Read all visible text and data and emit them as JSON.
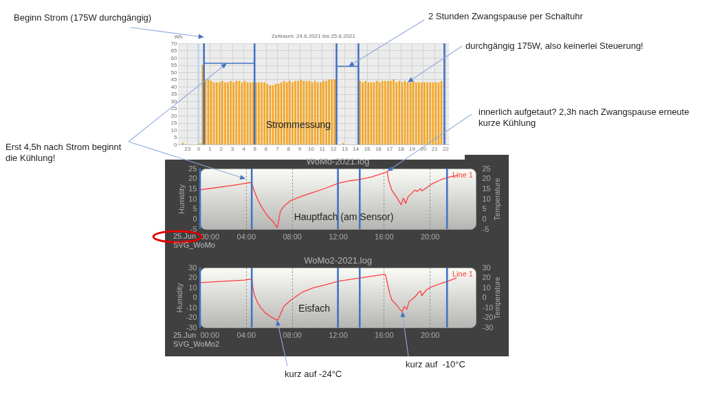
{
  "chart_data": [
    {
      "type": "bar",
      "title": "Zeitraum: 24.6.2021 bis 25.6.2021",
      "ylabel": "Wh",
      "x": [
        "2021-06-24T22:38",
        "2021-06-25T00:08",
        "2021-06-25T00:23",
        "2021-06-25T00:38",
        "2021-06-25T00:53",
        "2021-06-25T01:08",
        "2021-06-25T01:23",
        "2021-06-25T01:38",
        "2021-06-25T01:53",
        "2021-06-25T02:08",
        "2021-06-25T02:23",
        "2021-06-25T02:38",
        "2021-06-25T02:53",
        "2021-06-25T03:08",
        "2021-06-25T03:23",
        "2021-06-25T03:38",
        "2021-06-25T03:53",
        "2021-06-25T04:08",
        "2021-06-25T04:23",
        "2021-06-25T04:38",
        "2021-06-25T04:53",
        "2021-06-25T05:08",
        "2021-06-25T05:23",
        "2021-06-25T05:38",
        "2021-06-25T05:53",
        "2021-06-25T06:08",
        "2021-06-25T06:23",
        "2021-06-25T06:38",
        "2021-06-25T06:53",
        "2021-06-25T07:08",
        "2021-06-25T07:23",
        "2021-06-25T07:38",
        "2021-06-25T07:53",
        "2021-06-25T08:08",
        "2021-06-25T08:23",
        "2021-06-25T08:38",
        "2021-06-25T08:53",
        "2021-06-25T09:08",
        "2021-06-25T09:23",
        "2021-06-25T09:38",
        "2021-06-25T09:53",
        "2021-06-25T10:08",
        "2021-06-25T10:23",
        "2021-06-25T10:38",
        "2021-06-25T10:53",
        "2021-06-25T11:08",
        "2021-06-25T11:23",
        "2021-06-25T11:38",
        "2021-06-25T11:53",
        "2021-06-25T12:08",
        "2021-06-25T12:53",
        "2021-06-25T14:23",
        "2021-06-25T14:38",
        "2021-06-25T14:53",
        "2021-06-25T15:08",
        "2021-06-25T15:23",
        "2021-06-25T15:38",
        "2021-06-25T15:53",
        "2021-06-25T16:08",
        "2021-06-25T16:23",
        "2021-06-25T16:38",
        "2021-06-25T16:53",
        "2021-06-25T17:08",
        "2021-06-25T17:23",
        "2021-06-25T17:38",
        "2021-06-25T17:53",
        "2021-06-25T18:08",
        "2021-06-25T18:23",
        "2021-06-25T18:38",
        "2021-06-25T18:53",
        "2021-06-25T19:08",
        "2021-06-25T19:23",
        "2021-06-25T19:38",
        "2021-06-25T19:53",
        "2021-06-25T20:08",
        "2021-06-25T20:23",
        "2021-06-25T20:38",
        "2021-06-25T20:53",
        "2021-06-25T21:08",
        "2021-06-25T21:23",
        "2021-06-25T21:38"
      ],
      "series": [
        {
          "color": "#f6a623",
          "values": [
            1,
            1,
            55,
            45,
            45,
            44,
            43,
            43,
            43,
            44,
            43,
            43,
            44,
            43,
            44,
            44,
            43,
            44,
            43,
            43,
            43,
            43,
            43,
            43,
            43,
            42,
            41,
            41,
            42,
            42,
            43,
            44,
            43,
            44,
            43,
            44,
            44,
            45,
            44,
            44,
            44,
            43,
            44,
            43,
            43,
            44,
            44,
            45,
            45,
            45,
            1,
            44,
            43,
            44,
            43,
            43,
            43,
            44,
            43,
            44,
            44,
            44,
            44,
            45,
            43,
            44,
            43,
            44,
            43,
            43,
            44,
            43,
            43,
            43,
            43,
            43,
            43,
            43,
            43,
            43,
            44
          ]
        }
      ],
      "xlim": [
        "2021-06-24T22:30",
        "2021-06-25T22:00"
      ],
      "xticks": [
        {
          "value": "2021-06-24T23:00",
          "label": "23"
        },
        {
          "value": "2021-06-25T00:00",
          "label": "0"
        },
        {
          "value": "2021-06-25T01:00",
          "label": "1"
        },
        {
          "value": "2021-06-25T02:00",
          "label": "2"
        },
        {
          "value": "2021-06-25T03:00",
          "label": "3"
        },
        {
          "value": "2021-06-25T04:00",
          "label": "4"
        },
        {
          "value": "2021-06-25T05:00",
          "label": "5"
        },
        {
          "value": "2021-06-25T06:00",
          "label": "6"
        },
        {
          "value": "2021-06-25T07:00",
          "label": "7"
        },
        {
          "value": "2021-06-25T08:00",
          "label": "8"
        },
        {
          "value": "2021-06-25T09:00",
          "label": "9"
        },
        {
          "value": "2021-06-25T10:00",
          "label": "10"
        },
        {
          "value": "2021-06-25T11:00",
          "label": "11"
        },
        {
          "value": "2021-06-25T12:00",
          "label": "12"
        },
        {
          "value": "2021-06-25T13:00",
          "label": "13"
        },
        {
          "value": "2021-06-25T14:00",
          "label": "14"
        },
        {
          "value": "2021-06-25T15:00",
          "label": "15"
        },
        {
          "value": "2021-06-25T16:00",
          "label": "16"
        },
        {
          "value": "2021-06-25T17:00",
          "label": "17"
        },
        {
          "value": "2021-06-25T18:00",
          "label": "18"
        },
        {
          "value": "2021-06-25T19:00",
          "label": "19"
        },
        {
          "value": "2021-06-25T20:00",
          "label": "20"
        },
        {
          "value": "2021-06-25T21:00",
          "label": "21"
        },
        {
          "value": "2021-06-25T22:00",
          "label": "22"
        }
      ],
      "ylim": [
        0,
        70
      ],
      "yticks": [
        0,
        5,
        10,
        15,
        20,
        25,
        30,
        35,
        40,
        45,
        50,
        55,
        60,
        65,
        70
      ],
      "grid": true,
      "ref_lines": [
        {
          "axis": "x",
          "value": "2021-06-25T00:00",
          "color": "#bdd7ee"
        },
        {
          "axis": "x",
          "value": "2021-06-25T00:30",
          "color": "#4472c4"
        },
        {
          "axis": "x",
          "value": "2021-06-25T05:00",
          "color": "#4472c4"
        },
        {
          "axis": "x",
          "value": "2021-06-25T12:18",
          "color": "#4472c4"
        },
        {
          "axis": "x",
          "value": "2021-06-25T14:15",
          "color": "#4472c4"
        },
        {
          "axis": "x",
          "value": "2021-06-25T21:54",
          "color": "#4472c4"
        }
      ],
      "annotations": [
        "Strommessung",
        "Beginn Strom (175W durchgängig)",
        "2 Stunden Zwangspause per Schaltuhr",
        {
          "text": "durchgängig 175W, also keinerlei Steuerung!",
          "x": "2021-06-25T18:38",
          "y": 43
        }
      ]
    },
    {
      "type": "line",
      "title": "WoMo-2021.log",
      "ylabel": "Humidity",
      "y2label": "Temperature",
      "series": [
        {
          "name": "Line 1",
          "color": "#ff3c3c",
          "x": [
            0,
            1,
            2,
            2.9,
            3.9,
            4.4,
            4.5,
            4.8,
            5.1,
            5.5,
            6,
            6.4,
            6.7,
            6.8,
            7,
            7.3,
            7.9,
            8.9,
            9.9,
            10.9,
            12,
            12.9,
            13.9,
            14.9,
            16.1,
            16.3,
            16.4,
            16.7,
            17.1,
            17.5,
            17.7,
            17.9,
            18.1,
            18.4,
            18.7,
            18.9,
            19.2,
            19.3,
            19.7,
            20.1,
            20.9,
            21.7,
            22.4
          ],
          "values": [
            14.5,
            15.2,
            16,
            16.7,
            17.6,
            18.1,
            17.6,
            12.6,
            8.6,
            4.6,
            0.7,
            -1.6,
            -4.2,
            -2.2,
            4,
            6.3,
            9.2,
            11.4,
            13.3,
            15.2,
            17.6,
            18.8,
            19.6,
            20.8,
            23,
            23.6,
            19.3,
            14.2,
            10.9,
            7.1,
            10.3,
            7.7,
            10.9,
            12.6,
            14.3,
            13.7,
            15,
            13.9,
            15.4,
            17.1,
            19.3,
            20.8,
            21.6
          ]
        }
      ],
      "xlim": [
        0,
        24
      ],
      "xticks": [
        {
          "value": 0,
          "label": "00:00"
        },
        {
          "value": 4,
          "label": "04:00"
        },
        {
          "value": 8,
          "label": "08:00"
        },
        {
          "value": 12,
          "label": "12:00"
        },
        {
          "value": 16,
          "label": "16:00"
        },
        {
          "value": 20,
          "label": "20:00"
        }
      ],
      "ylim": [
        -5,
        25
      ],
      "yticks": [
        -5,
        0,
        5,
        10,
        15,
        20,
        25
      ],
      "y2lim": [
        -5,
        25
      ],
      "y2ticks": [
        -5,
        0,
        5,
        10,
        15,
        20,
        25
      ],
      "grid": "x",
      "legend": "top right",
      "ref_lines": [
        {
          "axis": "x",
          "value": 0,
          "color": "#4472c4"
        },
        {
          "axis": "x",
          "value": 4.5,
          "color": "#4472c4"
        },
        {
          "axis": "x",
          "value": 12,
          "color": "#4472c4"
        },
        {
          "axis": "x",
          "value": 13.9,
          "color": "#4472c4"
        },
        {
          "axis": "x",
          "value": 21.5,
          "color": "#4472c4"
        }
      ],
      "annotations": [
        "Hauptfach (am Sensor)",
        "25.Jun",
        "SVG_WoMo",
        "Erst 4,5h nach Strom beginnt die Kühlung!",
        {
          "text": "innerlich aufgetaut? 2,3h nach Zwangspause erneute kurze Kühlung",
          "x": 16.3,
          "y": 23.6
        }
      ]
    },
    {
      "type": "line",
      "title": "WoMo2-2021.log",
      "ylabel": "Humidity",
      "y2label": "Temperature",
      "series": [
        {
          "name": "Line 1",
          "color": "#ff3c3c",
          "x": [
            0,
            2,
            3.9,
            4.4,
            4.5,
            4.6,
            4.74,
            5,
            5.3,
            5.7,
            6.2,
            6.7,
            6.8,
            7.1,
            7.3,
            7.9,
            8.9,
            9.9,
            10.9,
            12,
            13.9,
            16,
            16.14,
            16.3,
            16.5,
            16.7,
            17,
            17.4,
            17.6,
            17.8,
            18,
            18.2,
            18.5,
            18.8,
            19,
            19.2,
            19.3,
            19.7,
            20.1,
            20.9,
            21.7,
            22.3
          ],
          "values": [
            14.9,
            16.3,
            17.5,
            18.4,
            17.9,
            9.9,
            1.9,
            -4.9,
            -10.6,
            -15.6,
            -19.7,
            -22.7,
            -21.8,
            -14,
            -8.8,
            -2.6,
            5.4,
            9.9,
            12.7,
            16.3,
            19.5,
            23.2,
            23.2,
            14.5,
            4.2,
            -2.6,
            -6,
            -11.8,
            -14,
            -9,
            -11.8,
            -3.8,
            -1.5,
            1.9,
            4.9,
            6.5,
            1.9,
            7.6,
            10.4,
            13.8,
            16.8,
            19.5
          ]
        }
      ],
      "xlim": [
        0,
        24
      ],
      "xticks": [
        {
          "value": 0,
          "label": "00:00"
        },
        {
          "value": 4,
          "label": "04:00"
        },
        {
          "value": 8,
          "label": "08:00"
        },
        {
          "value": 12,
          "label": "12:00"
        },
        {
          "value": 16,
          "label": "16:00"
        },
        {
          "value": 20,
          "label": "20:00"
        }
      ],
      "ylim": [
        -30,
        30
      ],
      "yticks": [
        -30,
        -20,
        -10,
        0,
        10,
        20,
        30
      ],
      "y2lim": [
        -30,
        30
      ],
      "y2ticks": [
        -30,
        -20,
        -10,
        0,
        10,
        20,
        30
      ],
      "grid": "x",
      "legend": "top right",
      "ref_lines": [
        {
          "axis": "x",
          "value": 0,
          "color": "#4472c4"
        },
        {
          "axis": "x",
          "value": 4.5,
          "color": "#4472c4"
        },
        {
          "axis": "x",
          "value": 12,
          "color": "#4472c4"
        },
        {
          "axis": "x",
          "value": 13.9,
          "color": "#4472c4"
        },
        {
          "axis": "x",
          "value": 21.5,
          "color": "#4472c4"
        }
      ],
      "annotations": [
        "Eisfach",
        "25.Jun",
        "SVG_WoMo2",
        {
          "text": "kurz auf -24°C",
          "x": 6.7,
          "y": -22.7
        },
        {
          "text": "kurz auf  -10°C",
          "x": 17.6,
          "y": -14
        }
      ]
    }
  ]
}
